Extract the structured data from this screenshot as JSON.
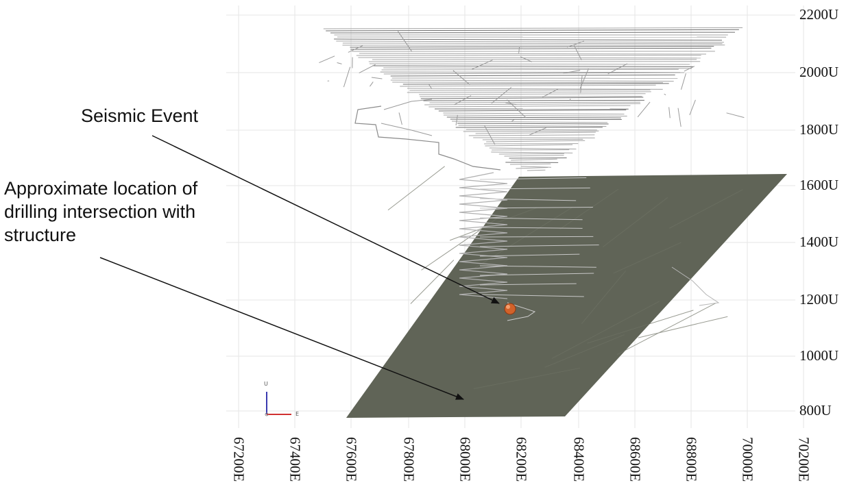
{
  "annotations": {
    "seismic_event": "Seismic Event",
    "drill_intersection": "Approximate location of\ndrilling intersection with\nstructure"
  },
  "axes": {
    "elevation_labels": [
      "2200U",
      "2000U",
      "1800U",
      "1600U",
      "1400U",
      "1200U",
      "1000U",
      "800U"
    ],
    "easting_labels": [
      "67200E",
      "67400E",
      "67600E",
      "67800E",
      "68000E",
      "68200E",
      "68400E",
      "68600E",
      "68800E",
      "70000E",
      "70200E"
    ]
  },
  "triad": {
    "up_label": "U",
    "east_label": "E"
  },
  "colors": {
    "structure_plane": "#5b5f52",
    "mine_workings": "#8c8c8c",
    "seismic_event": "#d2622a",
    "arrow": "#111111",
    "grid": "#e6e6e6"
  }
}
